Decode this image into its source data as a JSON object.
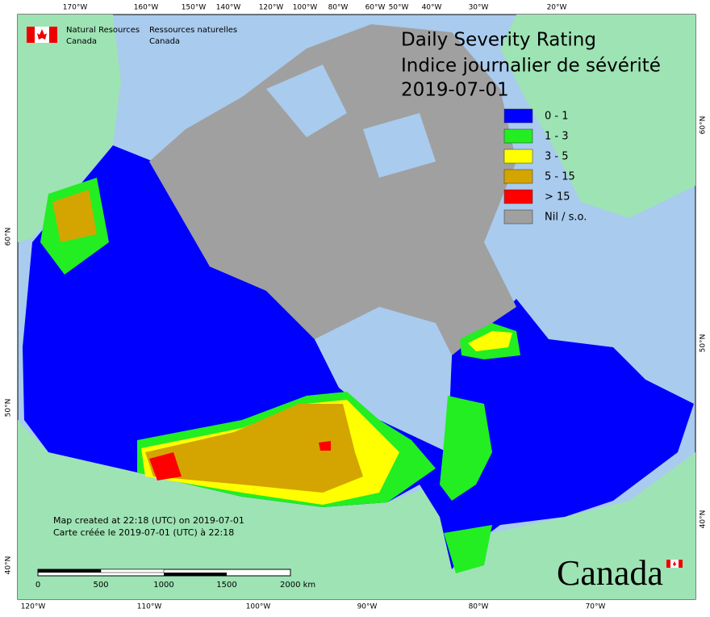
{
  "header": {
    "agency_en": [
      "Natural Resources",
      "Canada"
    ],
    "agency_fr": [
      "Ressources naturelles",
      "Canada"
    ]
  },
  "title": [
    "Daily Severity Rating",
    "Indice journalier de sévérité",
    "2019-07-01"
  ],
  "legend": [
    {
      "label": "0 - 1",
      "color": "#0000ff"
    },
    {
      "label": "1 - 3",
      "color": "#22ee22"
    },
    {
      "label": "3 - 5",
      "color": "#ffff00"
    },
    {
      "label": "5 - 15",
      "color": "#d4a500"
    },
    {
      "label": "> 15",
      "color": "#ff0000"
    },
    {
      "label": "Nil / s.o.",
      "color": "#a0a0a0"
    }
  ],
  "graticule": {
    "top": [
      "170°W",
      "160°W",
      "150°W",
      "140°W",
      "120°W",
      "100°W",
      "80°W",
      "60°W",
      "50°W",
      "40°W",
      "30°W",
      "20°W"
    ],
    "bottom": [
      "120°W",
      "110°W",
      "100°W",
      "90°W",
      "80°W",
      "70°W"
    ],
    "left": [
      "60°N",
      "50°N",
      "40°N"
    ],
    "right": [
      "60°N",
      "50°N",
      "40°N"
    ]
  },
  "credits": [
    "Map created at 22:18 (UTC) on 2019-07-01",
    "Carte créée le 2019-07-01 (UTC) à 22:18"
  ],
  "scale_bar": [
    "0",
    "500",
    "1000",
    "1500",
    "2000 km"
  ],
  "wordmark": "Canada"
}
